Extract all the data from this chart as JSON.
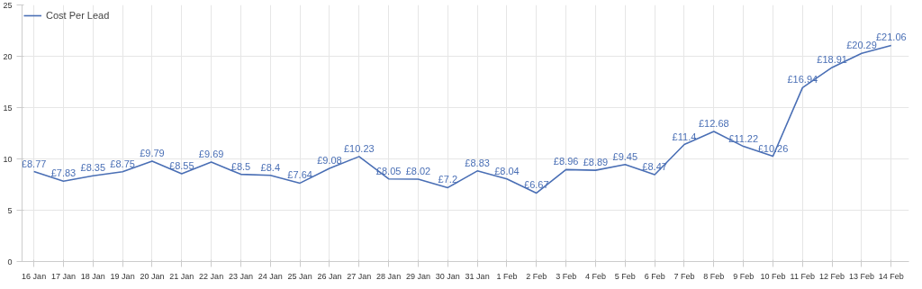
{
  "chart_data": {
    "type": "line",
    "categories": [
      "16 Jan",
      "17 Jan",
      "18 Jan",
      "19 Jan",
      "20 Jan",
      "21 Jan",
      "22 Jan",
      "23 Jan",
      "24 Jan",
      "25 Jan",
      "26 Jan",
      "27 Jan",
      "28 Jan",
      "29 Jan",
      "30 Jan",
      "31 Jan",
      "1 Feb",
      "2 Feb",
      "3 Feb",
      "4 Feb",
      "5 Feb",
      "6 Feb",
      "7 Feb",
      "8 Feb",
      "9 Feb",
      "10 Feb",
      "11 Feb",
      "12 Feb",
      "13 Feb",
      "14 Feb"
    ],
    "series": [
      {
        "name": "Cost Per Lead",
        "color": "#4a6fb5",
        "values": [
          8.77,
          7.83,
          8.35,
          8.75,
          9.79,
          8.55,
          9.69,
          8.5,
          8.4,
          7.64,
          9.08,
          10.23,
          8.05,
          8.02,
          7.2,
          8.83,
          8.04,
          6.67,
          8.96,
          8.89,
          9.45,
          8.47,
          11.4,
          12.68,
          11.22,
          10.26,
          16.94,
          18.91,
          20.29,
          21.06
        ],
        "value_labels": [
          "£8.77",
          "£7.83",
          "£8.35",
          "£8.75",
          "£9.79",
          "£8.55",
          "£9.69",
          "£8.5",
          "£8.4",
          "£7.64",
          "£9.08",
          "£10.23",
          "£8.05",
          "£8.02",
          "£7.2",
          "£8.83",
          "£8.04",
          "£6.67",
          "£8.96",
          "£8.89",
          "£9.45",
          "£8.47",
          "£11.4",
          "£12.68",
          "£11.22",
          "£10.26",
          "£16.94",
          "£18.91",
          "£20.29",
          "£21.06"
        ]
      }
    ],
    "ylim": [
      0,
      25
    ],
    "yticks": [
      0,
      5,
      10,
      15,
      20,
      25
    ],
    "grid": true,
    "legend": "top left",
    "marker": "none",
    "line_style": "solid"
  }
}
